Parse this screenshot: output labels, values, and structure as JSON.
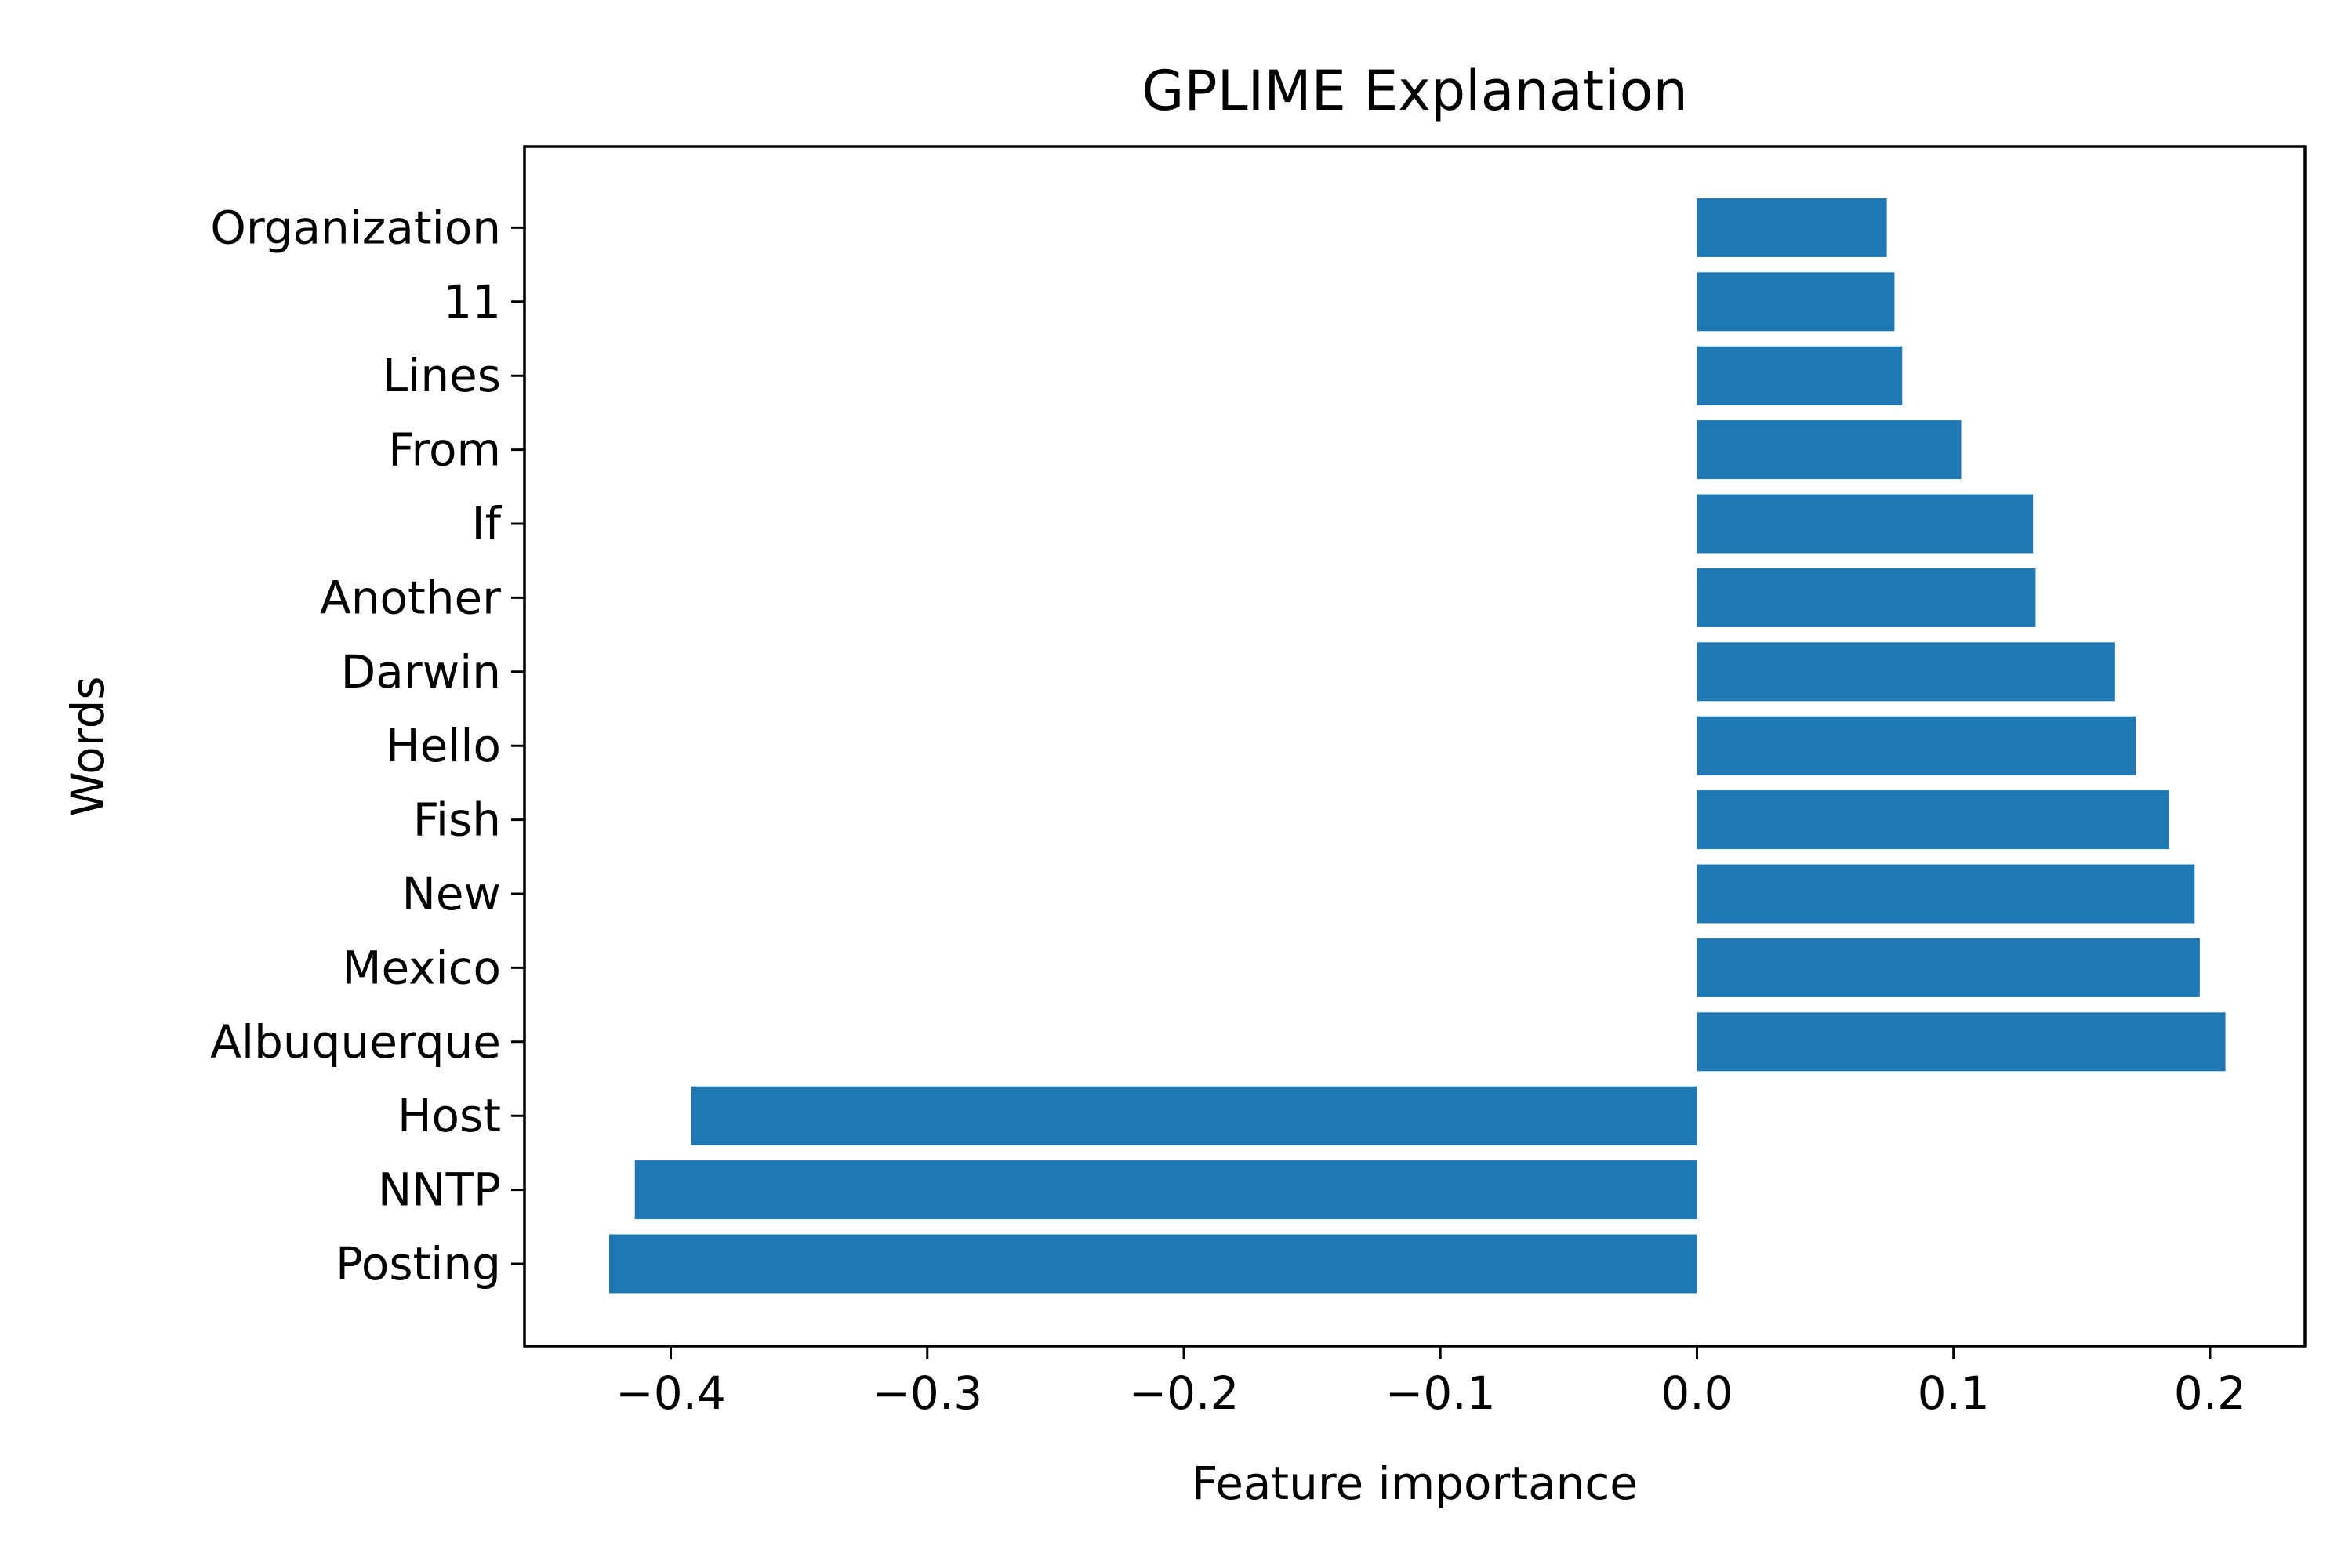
{
  "chart_data": {
    "type": "bar",
    "orientation": "horizontal",
    "title": "GPLIME Explanation",
    "xlabel": "Feature importance",
    "ylabel": "Words",
    "categories": [
      "Posting",
      "NNTP",
      "Host",
      "Albuquerque",
      "Mexico",
      "New",
      "Fish",
      "Hello",
      "Darwin",
      "Another",
      "If",
      "From",
      "Lines",
      "11",
      "Organization"
    ],
    "values": [
      -0.424,
      -0.414,
      -0.392,
      0.206,
      0.196,
      0.194,
      0.184,
      0.171,
      0.163,
      0.132,
      0.131,
      0.103,
      0.08,
      0.077,
      0.074
    ],
    "xlim": [
      -0.457,
      0.237
    ],
    "xticks": [
      -0.4,
      -0.3,
      -0.2,
      -0.1,
      0.0,
      0.1,
      0.2
    ],
    "xtick_labels": [
      "−0.4",
      "−0.3",
      "−0.2",
      "−0.1",
      "0.0",
      "0.1",
      "0.2"
    ],
    "bar_color": "#1f77b4",
    "grid": false,
    "legend": false
  }
}
